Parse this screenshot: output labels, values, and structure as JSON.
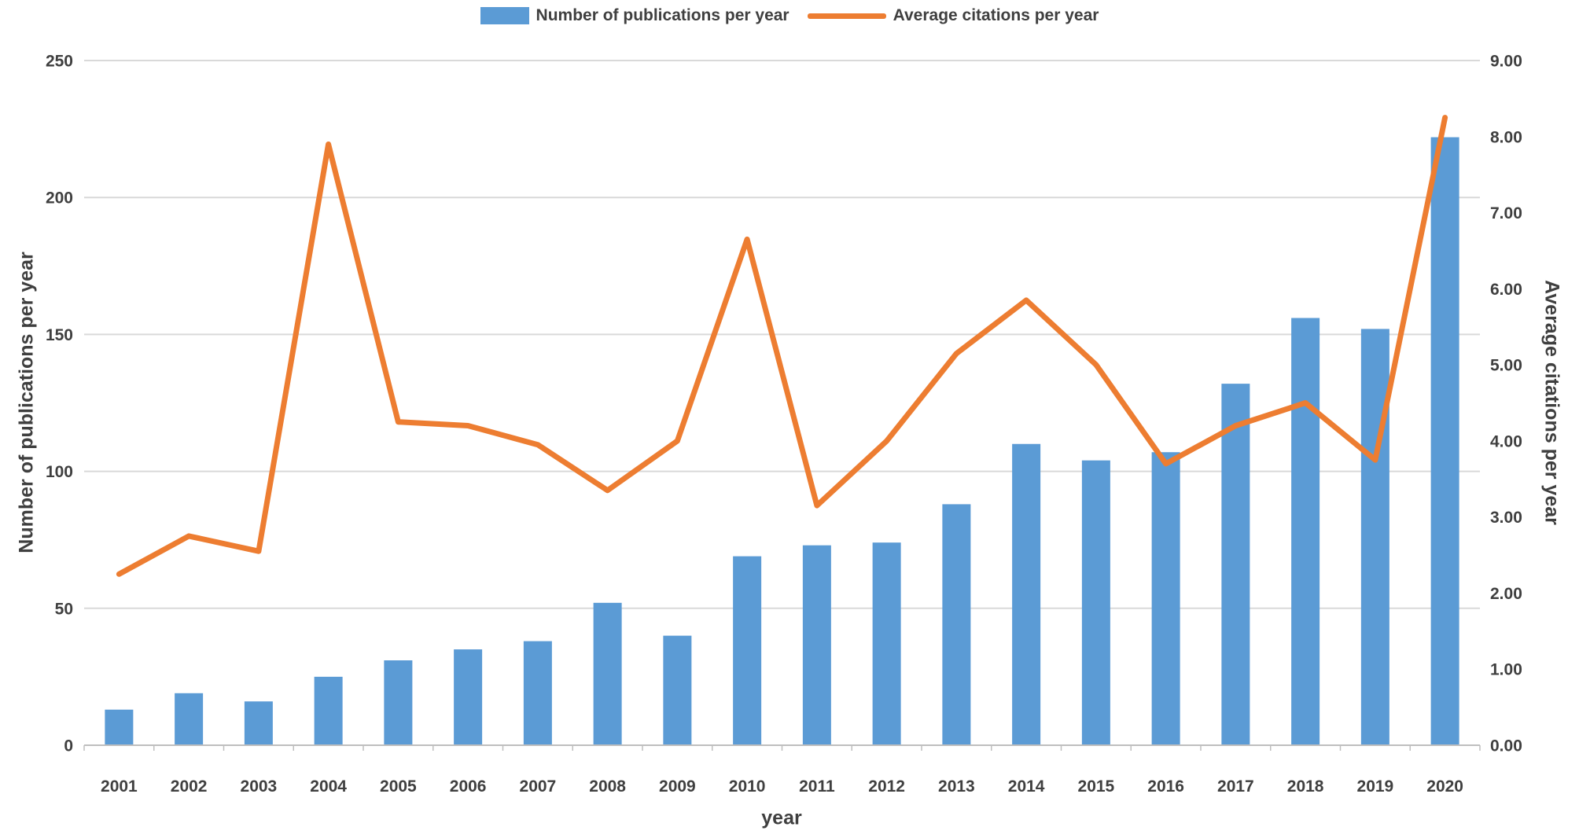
{
  "legend": {
    "bar_label": "Number of publications per year",
    "line_label": "Average citations per year"
  },
  "colors": {
    "bar": "#5B9BD5",
    "line": "#ED7D31",
    "grid": "#D9D9D9",
    "axis_line": "#BFBFBF",
    "text": "#3f3f3f"
  },
  "chart_data": {
    "type": "bar",
    "subtype": "combo-bar-line-dual-axis",
    "categories": [
      "2001",
      "2002",
      "2003",
      "2004",
      "2005",
      "2006",
      "2007",
      "2008",
      "2009",
      "2010",
      "2011",
      "2012",
      "2013",
      "2014",
      "2015",
      "2016",
      "2017",
      "2018",
      "2019",
      "2020"
    ],
    "series": [
      {
        "name": "Number of publications per year",
        "type": "bar",
        "axis": "left",
        "color": "#5B9BD5",
        "values": [
          13,
          19,
          16,
          25,
          31,
          35,
          38,
          52,
          40,
          69,
          73,
          74,
          88,
          110,
          104,
          107,
          132,
          156,
          152,
          222
        ]
      },
      {
        "name": "Average citations per year",
        "type": "line",
        "axis": "right",
        "color": "#ED7D31",
        "values": [
          2.25,
          2.75,
          2.55,
          7.9,
          4.25,
          4.2,
          3.95,
          3.35,
          4.0,
          6.65,
          3.15,
          4.0,
          5.15,
          5.85,
          5.0,
          3.7,
          4.2,
          4.5,
          3.75,
          8.25
        ]
      }
    ],
    "title": "",
    "xlabel": "year",
    "ylabel_left": "Number of publications per year",
    "ylabel_right": "Average citations per year",
    "ylim_left": [
      0,
      250
    ],
    "ylim_right": [
      0,
      9
    ],
    "left_ticks": [
      "0",
      "50",
      "100",
      "150",
      "200",
      "250"
    ],
    "right_ticks": [
      "0.00",
      "1.00",
      "2.00",
      "3.00",
      "4.00",
      "5.00",
      "6.00",
      "7.00",
      "8.00",
      "9.00"
    ],
    "grid": true,
    "legend_position": "top"
  }
}
